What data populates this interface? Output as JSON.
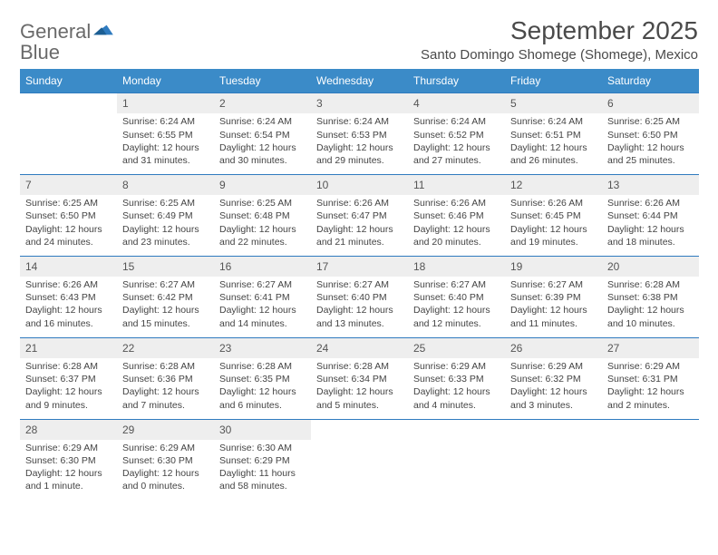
{
  "logo": {
    "word1": "General",
    "word2": "Blue"
  },
  "title": "September 2025",
  "subtitle": "Santo Domingo Shomege (Shomege), Mexico",
  "colors": {
    "header_bg": "#3b8bc8",
    "header_text": "#ffffff",
    "daynum_bg": "#eeeeee",
    "border": "#2f7bbf",
    "body_text": "#444444"
  },
  "day_names": [
    "Sunday",
    "Monday",
    "Tuesday",
    "Wednesday",
    "Thursday",
    "Friday",
    "Saturday"
  ],
  "weeks": [
    [
      {
        "num": "",
        "lines": []
      },
      {
        "num": "1",
        "lines": [
          "Sunrise: 6:24 AM",
          "Sunset: 6:55 PM",
          "Daylight: 12 hours",
          "and 31 minutes."
        ]
      },
      {
        "num": "2",
        "lines": [
          "Sunrise: 6:24 AM",
          "Sunset: 6:54 PM",
          "Daylight: 12 hours",
          "and 30 minutes."
        ]
      },
      {
        "num": "3",
        "lines": [
          "Sunrise: 6:24 AM",
          "Sunset: 6:53 PM",
          "Daylight: 12 hours",
          "and 29 minutes."
        ]
      },
      {
        "num": "4",
        "lines": [
          "Sunrise: 6:24 AM",
          "Sunset: 6:52 PM",
          "Daylight: 12 hours",
          "and 27 minutes."
        ]
      },
      {
        "num": "5",
        "lines": [
          "Sunrise: 6:24 AM",
          "Sunset: 6:51 PM",
          "Daylight: 12 hours",
          "and 26 minutes."
        ]
      },
      {
        "num": "6",
        "lines": [
          "Sunrise: 6:25 AM",
          "Sunset: 6:50 PM",
          "Daylight: 12 hours",
          "and 25 minutes."
        ]
      }
    ],
    [
      {
        "num": "7",
        "lines": [
          "Sunrise: 6:25 AM",
          "Sunset: 6:50 PM",
          "Daylight: 12 hours",
          "and 24 minutes."
        ]
      },
      {
        "num": "8",
        "lines": [
          "Sunrise: 6:25 AM",
          "Sunset: 6:49 PM",
          "Daylight: 12 hours",
          "and 23 minutes."
        ]
      },
      {
        "num": "9",
        "lines": [
          "Sunrise: 6:25 AM",
          "Sunset: 6:48 PM",
          "Daylight: 12 hours",
          "and 22 minutes."
        ]
      },
      {
        "num": "10",
        "lines": [
          "Sunrise: 6:26 AM",
          "Sunset: 6:47 PM",
          "Daylight: 12 hours",
          "and 21 minutes."
        ]
      },
      {
        "num": "11",
        "lines": [
          "Sunrise: 6:26 AM",
          "Sunset: 6:46 PM",
          "Daylight: 12 hours",
          "and 20 minutes."
        ]
      },
      {
        "num": "12",
        "lines": [
          "Sunrise: 6:26 AM",
          "Sunset: 6:45 PM",
          "Daylight: 12 hours",
          "and 19 minutes."
        ]
      },
      {
        "num": "13",
        "lines": [
          "Sunrise: 6:26 AM",
          "Sunset: 6:44 PM",
          "Daylight: 12 hours",
          "and 18 minutes."
        ]
      }
    ],
    [
      {
        "num": "14",
        "lines": [
          "Sunrise: 6:26 AM",
          "Sunset: 6:43 PM",
          "Daylight: 12 hours",
          "and 16 minutes."
        ]
      },
      {
        "num": "15",
        "lines": [
          "Sunrise: 6:27 AM",
          "Sunset: 6:42 PM",
          "Daylight: 12 hours",
          "and 15 minutes."
        ]
      },
      {
        "num": "16",
        "lines": [
          "Sunrise: 6:27 AM",
          "Sunset: 6:41 PM",
          "Daylight: 12 hours",
          "and 14 minutes."
        ]
      },
      {
        "num": "17",
        "lines": [
          "Sunrise: 6:27 AM",
          "Sunset: 6:40 PM",
          "Daylight: 12 hours",
          "and 13 minutes."
        ]
      },
      {
        "num": "18",
        "lines": [
          "Sunrise: 6:27 AM",
          "Sunset: 6:40 PM",
          "Daylight: 12 hours",
          "and 12 minutes."
        ]
      },
      {
        "num": "19",
        "lines": [
          "Sunrise: 6:27 AM",
          "Sunset: 6:39 PM",
          "Daylight: 12 hours",
          "and 11 minutes."
        ]
      },
      {
        "num": "20",
        "lines": [
          "Sunrise: 6:28 AM",
          "Sunset: 6:38 PM",
          "Daylight: 12 hours",
          "and 10 minutes."
        ]
      }
    ],
    [
      {
        "num": "21",
        "lines": [
          "Sunrise: 6:28 AM",
          "Sunset: 6:37 PM",
          "Daylight: 12 hours",
          "and 9 minutes."
        ]
      },
      {
        "num": "22",
        "lines": [
          "Sunrise: 6:28 AM",
          "Sunset: 6:36 PM",
          "Daylight: 12 hours",
          "and 7 minutes."
        ]
      },
      {
        "num": "23",
        "lines": [
          "Sunrise: 6:28 AM",
          "Sunset: 6:35 PM",
          "Daylight: 12 hours",
          "and 6 minutes."
        ]
      },
      {
        "num": "24",
        "lines": [
          "Sunrise: 6:28 AM",
          "Sunset: 6:34 PM",
          "Daylight: 12 hours",
          "and 5 minutes."
        ]
      },
      {
        "num": "25",
        "lines": [
          "Sunrise: 6:29 AM",
          "Sunset: 6:33 PM",
          "Daylight: 12 hours",
          "and 4 minutes."
        ]
      },
      {
        "num": "26",
        "lines": [
          "Sunrise: 6:29 AM",
          "Sunset: 6:32 PM",
          "Daylight: 12 hours",
          "and 3 minutes."
        ]
      },
      {
        "num": "27",
        "lines": [
          "Sunrise: 6:29 AM",
          "Sunset: 6:31 PM",
          "Daylight: 12 hours",
          "and 2 minutes."
        ]
      }
    ],
    [
      {
        "num": "28",
        "lines": [
          "Sunrise: 6:29 AM",
          "Sunset: 6:30 PM",
          "Daylight: 12 hours",
          "and 1 minute."
        ]
      },
      {
        "num": "29",
        "lines": [
          "Sunrise: 6:29 AM",
          "Sunset: 6:30 PM",
          "Daylight: 12 hours",
          "and 0 minutes."
        ]
      },
      {
        "num": "30",
        "lines": [
          "Sunrise: 6:30 AM",
          "Sunset: 6:29 PM",
          "Daylight: 11 hours",
          "and 58 minutes."
        ]
      },
      {
        "num": "",
        "lines": []
      },
      {
        "num": "",
        "lines": []
      },
      {
        "num": "",
        "lines": []
      },
      {
        "num": "",
        "lines": []
      }
    ]
  ]
}
